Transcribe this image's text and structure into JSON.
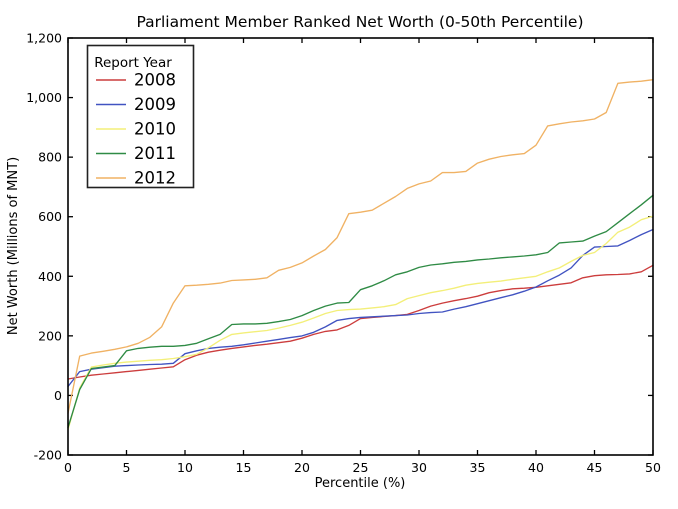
{
  "chart_data": {
    "type": "line",
    "title": "Parliament Member Ranked Net Worth (0-50th Percentile)",
    "xlabel": "Percentile (%)",
    "ylabel": "Net Worth (Millions of MNT)",
    "xlim": [
      0,
      50
    ],
    "ylim": [
      -200,
      1200
    ],
    "grid": false,
    "x_ticks": [
      0,
      5,
      10,
      15,
      20,
      25,
      30,
      35,
      40,
      45,
      50
    ],
    "x_tick_labels": [
      "0",
      "5",
      "10",
      "15",
      "20",
      "25",
      "30",
      "35",
      "40",
      "45",
      "50"
    ],
    "y_ticks": [
      -200,
      0,
      200,
      400,
      600,
      800,
      1000,
      1200
    ],
    "y_tick_labels": [
      "-200",
      "0",
      "200",
      "400",
      "600",
      "800",
      "1,000",
      "1,200"
    ],
    "legend": {
      "title": "Report Year",
      "position": "upper left"
    },
    "x": [
      0,
      1,
      2,
      3,
      4,
      5,
      6,
      7,
      8,
      9,
      10,
      11,
      12,
      13,
      14,
      15,
      16,
      17,
      18,
      19,
      20,
      21,
      22,
      23,
      24,
      25,
      26,
      27,
      28,
      29,
      30,
      31,
      32,
      33,
      34,
      35,
      36,
      37,
      38,
      39,
      40,
      41,
      42,
      43,
      44,
      45,
      46,
      47,
      48,
      49,
      50
    ],
    "series": [
      {
        "name": "2008",
        "color": "#cc3d3d",
        "values": [
          55,
          62,
          68,
          72,
          76,
          80,
          84,
          88,
          92,
          96,
          120,
          135,
          145,
          152,
          158,
          163,
          168,
          172,
          177,
          182,
          192,
          205,
          215,
          220,
          235,
          258,
          262,
          265,
          268,
          272,
          285,
          300,
          310,
          318,
          325,
          333,
          345,
          352,
          358,
          360,
          363,
          368,
          373,
          378,
          395,
          402,
          405,
          406,
          408,
          415,
          437
        ]
      },
      {
        "name": "2009",
        "color": "#4153c1",
        "values": [
          30,
          80,
          88,
          93,
          98,
          100,
          102,
          104,
          105,
          108,
          140,
          150,
          158,
          162,
          165,
          170,
          176,
          182,
          188,
          194,
          200,
          212,
          230,
          252,
          258,
          262,
          264,
          266,
          268,
          270,
          275,
          278,
          280,
          290,
          298,
          308,
          318,
          328,
          338,
          350,
          364,
          385,
          404,
          428,
          470,
          498,
          500,
          502,
          520,
          540,
          557
        ]
      },
      {
        "name": "2010",
        "color": "#f3ef79",
        "values": [
          -115,
          25,
          95,
          102,
          108,
          112,
          115,
          118,
          120,
          124,
          130,
          138,
          160,
          185,
          205,
          210,
          214,
          218,
          226,
          235,
          246,
          260,
          275,
          285,
          288,
          290,
          294,
          298,
          305,
          325,
          335,
          345,
          352,
          360,
          370,
          376,
          380,
          384,
          390,
          395,
          400,
          415,
          428,
          450,
          470,
          480,
          510,
          548,
          565,
          590,
          602
        ]
      },
      {
        "name": "2011",
        "color": "#2f8b45",
        "values": [
          -108,
          20,
          90,
          95,
          100,
          150,
          158,
          162,
          165,
          165,
          168,
          175,
          190,
          205,
          238,
          240,
          240,
          242,
          248,
          255,
          268,
          285,
          300,
          310,
          312,
          355,
          368,
          385,
          405,
          415,
          430,
          438,
          442,
          447,
          450,
          455,
          458,
          462,
          465,
          468,
          472,
          480,
          512,
          515,
          518,
          535,
          550,
          580,
          610,
          640,
          672
        ]
      },
      {
        "name": "2012",
        "color": "#f0b264",
        "values": [
          -60,
          132,
          142,
          148,
          155,
          163,
          175,
          195,
          230,
          310,
          368,
          370,
          373,
          377,
          386,
          388,
          390,
          395,
          420,
          430,
          445,
          468,
          490,
          530,
          610,
          615,
          622,
          645,
          668,
          695,
          710,
          720,
          748,
          748,
          752,
          780,
          793,
          802,
          808,
          812,
          840,
          905,
          912,
          918,
          922,
          928,
          950,
          1048,
          1052,
          1055,
          1060
        ]
      }
    ]
  }
}
